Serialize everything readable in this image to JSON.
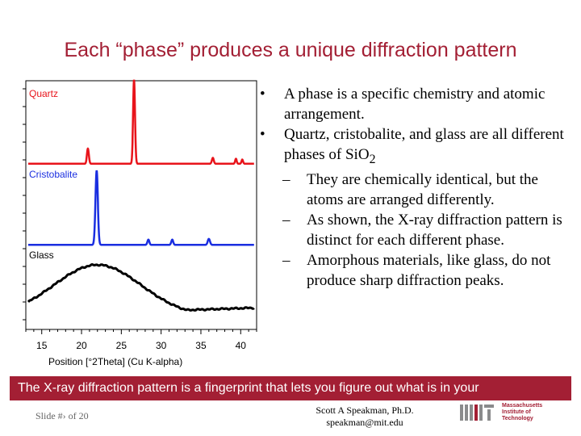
{
  "slide": {
    "title": "Each “phase” produces a unique diffraction pattern",
    "bullets": [
      {
        "level": 1,
        "text": "A phase is a specific chemistry and atomic arrangement."
      },
      {
        "level": 1,
        "text_main": "Quartz, cristobalite, and glass are all different phases of SiO",
        "text_sub": "2"
      },
      {
        "level": 2,
        "text": "They are chemically identical, but the atoms are arranged differently."
      },
      {
        "level": 2,
        "text": "As shown, the X-ray diffraction pattern is distinct for each different phase."
      },
      {
        "level": 2,
        "text": "Amorphous materials, like glass, do not produce sharp diffraction peaks."
      }
    ],
    "bullet_symbol": "•",
    "dash_symbol": "–",
    "banner": "The X-ray diffraction pattern is a fingerprint that lets you figure out what is in your",
    "slide_number": "Slide #› of 20",
    "author": "Scott A Speakman, Ph.D.",
    "email": "speakman@mit.edu",
    "logo_text": [
      "Massachusetts",
      "Institute of",
      "Technology"
    ]
  },
  "colors": {
    "title": "#a31f34",
    "banner": "#a31f34",
    "quartz": "#e8141b",
    "cristobalite": "#1a2ee0",
    "glass": "#000000"
  },
  "chart_data": {
    "type": "line",
    "xlabel": "Position [°2Theta] (Cu K-alpha)",
    "ylabel": "",
    "xlim": [
      13,
      42
    ],
    "x_ticks": [
      15,
      20,
      25,
      30,
      35,
      40
    ],
    "grid": false,
    "legend": "inline labels",
    "series": [
      {
        "name": "Quartz",
        "baseline": 0.05,
        "peaks": [
          {
            "x": 20.8,
            "h": 0.18,
            "w": 0.12
          },
          {
            "x": 26.6,
            "h": 1.0,
            "w": 0.12
          },
          {
            "x": 36.5,
            "h": 0.07,
            "w": 0.12
          },
          {
            "x": 39.4,
            "h": 0.06,
            "w": 0.1
          },
          {
            "x": 40.2,
            "h": 0.05,
            "w": 0.1
          }
        ]
      },
      {
        "name": "Cristobalite",
        "baseline": 0.03,
        "peaks": [
          {
            "x": 21.9,
            "h": 1.0,
            "w": 0.15
          },
          {
            "x": 28.4,
            "h": 0.07,
            "w": 0.12
          },
          {
            "x": 31.4,
            "h": 0.07,
            "w": 0.12
          },
          {
            "x": 36.0,
            "h": 0.08,
            "w": 0.14
          }
        ]
      },
      {
        "name": "Glass",
        "hump": {
          "x": 22.0,
          "h": 1.0,
          "w": 5.5
        },
        "baseline_end": 0.15
      }
    ]
  }
}
